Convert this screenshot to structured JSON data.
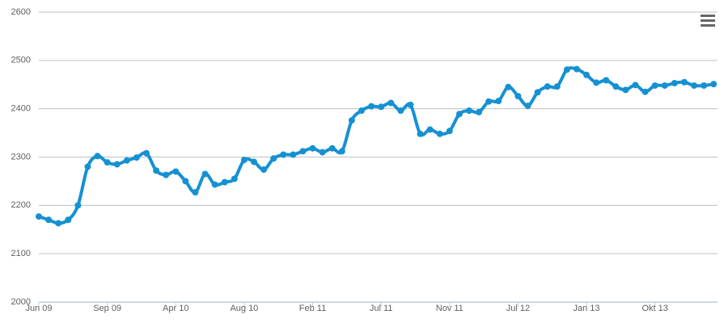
{
  "chart_data": {
    "type": "line",
    "categories": [
      "Jun 09",
      null,
      null,
      null,
      null,
      null,
      null,
      "Sep 09",
      null,
      null,
      null,
      null,
      null,
      null,
      "Apr 10",
      null,
      null,
      null,
      null,
      null,
      null,
      "Aug 10",
      null,
      null,
      null,
      null,
      null,
      null,
      "Feb 11",
      null,
      null,
      null,
      null,
      null,
      null,
      "Jul 11",
      null,
      null,
      null,
      null,
      null,
      null,
      "Nov 11",
      null,
      null,
      null,
      null,
      null,
      null,
      "Jul 12",
      null,
      null,
      null,
      null,
      null,
      null,
      "Jan 13",
      null,
      null,
      null,
      null,
      null,
      null,
      "Okt 13",
      null,
      null,
      null,
      null,
      null,
      null
    ],
    "series": [
      {
        "color": "#1591d2",
        "values": [
          2177,
          2170,
          2163,
          2170,
          2200,
          2280,
          2302,
          2289,
          2285,
          2293,
          2299,
          2308,
          2272,
          2263,
          2270,
          2250,
          2227,
          2265,
          2243,
          2248,
          2255,
          2294,
          2290,
          2274,
          2297,
          2305,
          2305,
          2312,
          2318,
          2310,
          2318,
          2312,
          2376,
          2396,
          2405,
          2404,
          2412,
          2396,
          2408,
          2348,
          2357,
          2348,
          2354,
          2389,
          2396,
          2393,
          2415,
          2416,
          2445,
          2426,
          2406,
          2434,
          2446,
          2446,
          2481,
          2482,
          2470,
          2454,
          2459,
          2446,
          2439,
          2449,
          2435,
          2448,
          2448,
          2453,
          2455,
          2448,
          2448,
          2451
        ]
      }
    ],
    "ylim": [
      2000,
      2600
    ],
    "yticks": [
      2000,
      2100,
      2200,
      2300,
      2400,
      2500,
      2600
    ],
    "grid": true
  }
}
